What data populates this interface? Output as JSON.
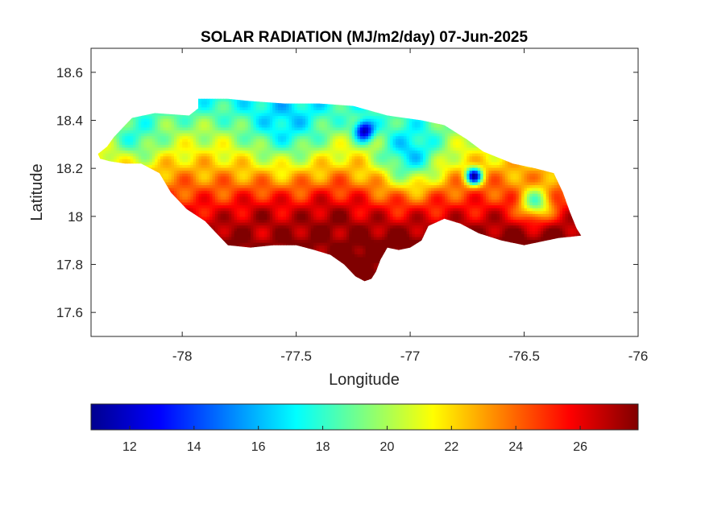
{
  "chart_data": {
    "type": "heatmap",
    "title": "SOLAR RADIATION (MJ/m2/day) 07-Jun-2025",
    "xlabel": "Longitude",
    "ylabel": "Latitude",
    "xlim": [
      -78.4,
      -76.0
    ],
    "ylim": [
      17.5,
      18.7
    ],
    "xticks": [
      -78,
      -77.5,
      -77,
      -76.5,
      -76
    ],
    "yticks": [
      17.6,
      17.8,
      18,
      18.2,
      18.4,
      18.6
    ],
    "colormap": "jet",
    "clim": [
      10.8,
      27.8
    ],
    "colorbar_ticks": [
      12,
      14,
      16,
      18,
      20,
      22,
      24,
      26
    ],
    "colorbar_location": "bottom",
    "grid": false,
    "region_outline": [
      [
        -78.37,
        18.26
      ],
      [
        -78.33,
        18.29
      ],
      [
        -78.3,
        18.33
      ],
      [
        -78.26,
        18.37
      ],
      [
        -78.22,
        18.41
      ],
      [
        -78.12,
        18.43
      ],
      [
        -77.97,
        18.42
      ],
      [
        -77.93,
        18.45
      ],
      [
        -77.93,
        18.49
      ],
      [
        -77.8,
        18.49
      ],
      [
        -77.7,
        18.48
      ],
      [
        -77.55,
        18.47
      ],
      [
        -77.4,
        18.47
      ],
      [
        -77.25,
        18.46
      ],
      [
        -77.1,
        18.42
      ],
      [
        -76.95,
        18.4
      ],
      [
        -76.85,
        18.38
      ],
      [
        -76.75,
        18.32
      ],
      [
        -76.68,
        18.27
      ],
      [
        -76.55,
        18.22
      ],
      [
        -76.45,
        18.2
      ],
      [
        -76.37,
        18.18
      ],
      [
        -76.33,
        18.1
      ],
      [
        -76.3,
        18.02
      ],
      [
        -76.27,
        17.95
      ],
      [
        -76.25,
        17.92
      ],
      [
        -76.35,
        17.91
      ],
      [
        -76.5,
        17.88
      ],
      [
        -76.6,
        17.9
      ],
      [
        -76.7,
        17.93
      ],
      [
        -76.78,
        17.97
      ],
      [
        -76.85,
        17.99
      ],
      [
        -76.92,
        17.96
      ],
      [
        -76.95,
        17.9
      ],
      [
        -77.0,
        17.87
      ],
      [
        -77.05,
        17.86
      ],
      [
        -77.1,
        17.87
      ],
      [
        -77.13,
        17.82
      ],
      [
        -77.15,
        17.77
      ],
      [
        -77.17,
        17.74
      ],
      [
        -77.2,
        17.73
      ],
      [
        -77.24,
        17.75
      ],
      [
        -77.29,
        17.8
      ],
      [
        -77.35,
        17.84
      ],
      [
        -77.42,
        17.86
      ],
      [
        -77.5,
        17.88
      ],
      [
        -77.6,
        17.88
      ],
      [
        -77.7,
        17.87
      ],
      [
        -77.8,
        17.88
      ],
      [
        -77.85,
        17.93
      ],
      [
        -77.9,
        17.98
      ],
      [
        -77.98,
        18.03
      ],
      [
        -78.05,
        18.1
      ],
      [
        -78.1,
        18.18
      ],
      [
        -78.18,
        18.22
      ],
      [
        -78.25,
        18.22
      ],
      [
        -78.32,
        18.23
      ],
      [
        -78.36,
        18.24
      ]
    ],
    "radiation_field": {
      "base_value": 24.5,
      "features": [
        {
          "lon": -77.2,
          "lat": 18.36,
          "value": 10.8,
          "spread": 0.03
        },
        {
          "lon": -76.72,
          "lat": 18.17,
          "value": 12.0,
          "spread": 0.025
        },
        {
          "lon": -77.55,
          "lat": 18.42,
          "value": 16.5,
          "spread": 0.12
        },
        {
          "lon": -78.2,
          "lat": 18.35,
          "value": 18.0,
          "spread": 0.08
        },
        {
          "lon": -77.0,
          "lat": 18.28,
          "value": 16.5,
          "spread": 0.1
        },
        {
          "lon": -76.45,
          "lat": 18.06,
          "value": 19.0,
          "spread": 0.05
        },
        {
          "lon": -77.35,
          "lat": 17.93,
          "value": 27.5,
          "spread": 0.1
        },
        {
          "lon": -77.65,
          "lat": 17.95,
          "value": 27.0,
          "spread": 0.08
        },
        {
          "lon": -77.15,
          "lat": 17.82,
          "value": 27.8,
          "spread": 0.05
        }
      ]
    }
  }
}
